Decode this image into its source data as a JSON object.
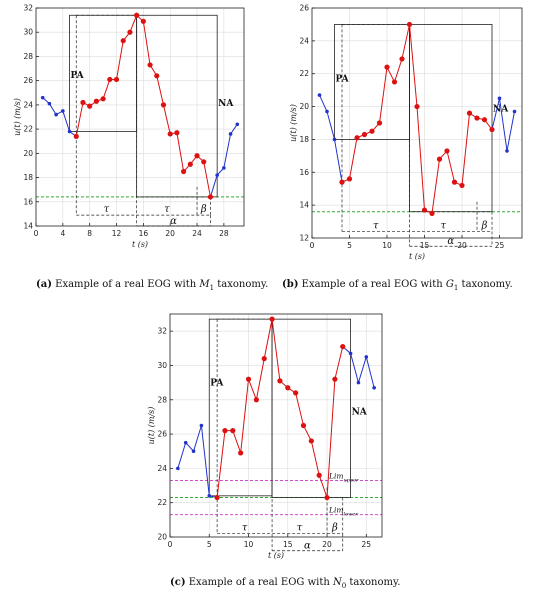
{
  "chart_data": [
    {
      "type": "line",
      "panel_id": "a",
      "caption_label": "(a)",
      "caption_text": "Example of a real EOG with",
      "caption_symbol": "M",
      "caption_sub": "1",
      "caption_end": "taxonomy.",
      "xlabel": "t (s)",
      "ylabel": "u(t) (m/s)",
      "xlim": [
        0,
        31
      ],
      "ylim": [
        14,
        32
      ],
      "xticks": [
        "0",
        "4",
        "8",
        "12",
        "16",
        "20",
        "24",
        "28"
      ],
      "yticks": [
        "14",
        "16",
        "18",
        "20",
        "22",
        "24",
        "26",
        "28",
        "30",
        "32"
      ],
      "grid": true,
      "x": [
        1,
        2,
        3,
        4,
        5,
        6,
        7,
        8,
        9,
        10,
        11,
        12,
        13,
        14,
        15,
        16,
        17,
        18,
        19,
        20,
        21,
        22,
        23,
        24,
        25,
        26,
        27,
        28,
        29,
        30
      ],
      "y": [
        24.6,
        24.1,
        23.2,
        23.5,
        21.8,
        21.4,
        24.2,
        23.9,
        24.3,
        24.5,
        26.1,
        26.1,
        29.3,
        30.0,
        31.4,
        30.9,
        27.3,
        26.4,
        24.0,
        21.6,
        21.7,
        18.5,
        19.1,
        19.8,
        19.3,
        16.4,
        18.2,
        18.8,
        21.6,
        22.4
      ],
      "red_range": [
        6,
        26
      ],
      "threshold": 16.4,
      "pa_label": "PA",
      "na_label": "NA",
      "tau1": "τ",
      "tau2": "τ",
      "alpha": "α",
      "beta": "β",
      "boxes": {
        "rise": [
          5,
          15
        ],
        "fall": [
          15,
          27
        ],
        "top": 31.4,
        "bottom": 14.9,
        "tau_y": 14.9,
        "alpha_y": 14.0,
        "beta_x": 24
      }
    },
    {
      "type": "line",
      "panel_id": "b",
      "caption_label": "(b)",
      "caption_text": "Example of a real EOG with",
      "caption_symbol": "G",
      "caption_sub": "1",
      "caption_end": "taxonomy.",
      "xlabel": "t (s)",
      "ylabel": "u(t) (m/s)",
      "xlim": [
        0,
        28
      ],
      "ylim": [
        12,
        26
      ],
      "xticks": [
        "0",
        "5",
        "10",
        "15",
        "20",
        "25"
      ],
      "yticks": [
        "12",
        "14",
        "16",
        "18",
        "20",
        "22",
        "24",
        "26"
      ],
      "grid": true,
      "x": [
        1,
        2,
        3,
        4,
        5,
        6,
        7,
        8,
        9,
        10,
        11,
        12,
        13,
        14,
        15,
        16,
        17,
        18,
        19,
        20,
        21,
        22,
        23,
        24,
        25,
        26,
        27
      ],
      "y": [
        20.7,
        19.7,
        18.0,
        15.4,
        15.6,
        18.1,
        18.3,
        18.5,
        19.0,
        22.4,
        21.5,
        22.9,
        25.0,
        20.0,
        13.7,
        13.5,
        16.8,
        17.3,
        15.4,
        15.2,
        19.6,
        19.3,
        19.2,
        18.6,
        20.5,
        17.3,
        19.7
      ],
      "red_range": [
        4,
        24
      ],
      "threshold": 13.6,
      "pa_label": "PA",
      "na_label": "NA",
      "tau1": "τ",
      "tau2": "τ",
      "alpha": "α",
      "beta": "β",
      "boxes": {
        "rise": [
          3,
          13
        ],
        "fall": [
          13,
          24
        ],
        "top": 25.0,
        "bottom": 12.4,
        "tau_y": 12.4,
        "alpha_y": 11.5,
        "beta_x": 22
      }
    },
    {
      "type": "line",
      "panel_id": "c",
      "caption_label": "(c)",
      "caption_text": "Example of a real EOG with",
      "caption_symbol": "N",
      "caption_sub": "0",
      "caption_end": "taxonomy.",
      "xlabel": "t (s)",
      "ylabel": "u(t) (m/s)",
      "xlim": [
        0,
        27
      ],
      "ylim": [
        20,
        33
      ],
      "xticks": [
        "0",
        "5",
        "10",
        "15",
        "20",
        "25"
      ],
      "yticks": [
        "20",
        "22",
        "24",
        "26",
        "28",
        "30",
        "32"
      ],
      "grid": true,
      "x": [
        1,
        2,
        3,
        4,
        5,
        6,
        7,
        8,
        9,
        10,
        11,
        12,
        13,
        14,
        15,
        16,
        17,
        18,
        19,
        20,
        21,
        22,
        23,
        24,
        25,
        26
      ],
      "y": [
        24.0,
        25.5,
        25.0,
        26.5,
        22.4,
        22.3,
        26.2,
        26.2,
        24.9,
        29.2,
        28.0,
        30.4,
        32.7,
        29.1,
        28.7,
        28.4,
        26.5,
        25.6,
        23.6,
        22.3,
        29.2,
        31.1,
        30.7,
        29.0,
        30.5,
        28.7
      ],
      "red_range": [
        6,
        22
      ],
      "threshold": 22.3,
      "lim_upper": 23.3,
      "lim_lower": 21.3,
      "lim_upper_label": "Lim",
      "lim_upper_sub": "upper",
      "lim_lower_label": "Lim",
      "lim_lower_sub": "lower",
      "pa_label": "PA",
      "na_label": "NA",
      "tau1": "τ",
      "tau2": "τ",
      "alpha": "α",
      "beta": "β",
      "boxes": {
        "rise": [
          5,
          13
        ],
        "fall": [
          13,
          23
        ],
        "top": 32.7,
        "bottom": 20.2,
        "tau_y": 20.2,
        "alpha_y": 19.2,
        "beta_x": 20
      }
    }
  ]
}
